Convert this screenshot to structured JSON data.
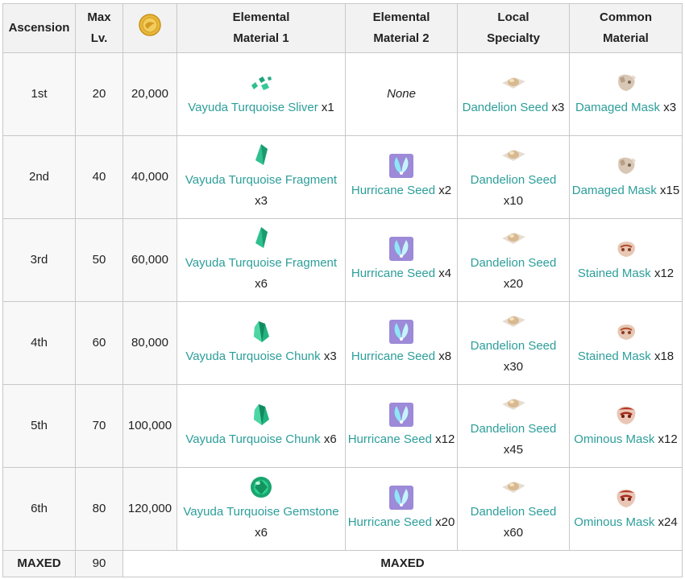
{
  "header": {
    "ascension": "Ascension",
    "max_lv": "Max Lv.",
    "mora": {
      "icon": "mora-coin-icon"
    },
    "elemental_1": "Elemental Material 1",
    "elemental_2": "Elemental Material 2",
    "local_specialty": "Local Specialty",
    "common_material": "Common Material"
  },
  "rows": [
    {
      "ascension": "1st",
      "max_lv": "20",
      "mora": "20,000",
      "elem1": {
        "icon": "turquoise-sliver-icon",
        "name": "Vayuda Turquoise Sliver",
        "qty": "x1"
      },
      "elem2": {
        "none": "None"
      },
      "local": {
        "icon": "dandelion-seed-icon",
        "name": "Dandelion Seed",
        "qty": "x3"
      },
      "common": {
        "icon": "damaged-mask-icon",
        "name": "Damaged Mask",
        "qty": "x3"
      }
    },
    {
      "ascension": "2nd",
      "max_lv": "40",
      "mora": "40,000",
      "elem1": {
        "icon": "turquoise-fragment-icon",
        "name": "Vayuda Turquoise Fragment",
        "qty": "x3"
      },
      "elem2": {
        "icon": "hurricane-seed-icon",
        "name": "Hurricane Seed",
        "qty": "x2"
      },
      "local": {
        "icon": "dandelion-seed-icon",
        "name": "Dandelion Seed",
        "qty": "x10"
      },
      "common": {
        "icon": "damaged-mask-icon",
        "name": "Damaged Mask",
        "qty": "x15"
      }
    },
    {
      "ascension": "3rd",
      "max_lv": "50",
      "mora": "60,000",
      "elem1": {
        "icon": "turquoise-fragment-icon",
        "name": "Vayuda Turquoise Fragment",
        "qty": "x6"
      },
      "elem2": {
        "icon": "hurricane-seed-icon",
        "name": "Hurricane Seed",
        "qty": "x4"
      },
      "local": {
        "icon": "dandelion-seed-icon",
        "name": "Dandelion Seed",
        "qty": "x20"
      },
      "common": {
        "icon": "stained-mask-icon",
        "name": "Stained Mask",
        "qty": "x12"
      }
    },
    {
      "ascension": "4th",
      "max_lv": "60",
      "mora": "80,000",
      "elem1": {
        "icon": "turquoise-chunk-icon",
        "name": "Vayuda Turquoise Chunk",
        "qty": "x3"
      },
      "elem2": {
        "icon": "hurricane-seed-icon",
        "name": "Hurricane Seed",
        "qty": "x8"
      },
      "local": {
        "icon": "dandelion-seed-icon",
        "name": "Dandelion Seed",
        "qty": "x30"
      },
      "common": {
        "icon": "stained-mask-icon",
        "name": "Stained Mask",
        "qty": "x18"
      }
    },
    {
      "ascension": "5th",
      "max_lv": "70",
      "mora": "100,000",
      "elem1": {
        "icon": "turquoise-chunk-icon",
        "name": "Vayuda Turquoise Chunk",
        "qty": "x6"
      },
      "elem2": {
        "icon": "hurricane-seed-icon",
        "name": "Hurricane Seed",
        "qty": "x12"
      },
      "local": {
        "icon": "dandelion-seed-icon",
        "name": "Dandelion Seed",
        "qty": "x45"
      },
      "common": {
        "icon": "ominous-mask-icon",
        "name": "Ominous Mask",
        "qty": "x12"
      }
    },
    {
      "ascension": "6th",
      "max_lv": "80",
      "mora": "120,000",
      "elem1": {
        "icon": "turquoise-gemstone-icon",
        "name": "Vayuda Turquoise Gemstone",
        "qty": "x6"
      },
      "elem2": {
        "icon": "hurricane-seed-icon",
        "name": "Hurricane Seed",
        "qty": "x20"
      },
      "local": {
        "icon": "dandelion-seed-icon",
        "name": "Dandelion Seed",
        "qty": "x60"
      },
      "common": {
        "icon": "ominous-mask-icon",
        "name": "Ominous Mask",
        "qty": "x24"
      }
    }
  ],
  "maxed_row": {
    "label": "MAXED",
    "max_lv": "90",
    "summary": "MAXED"
  },
  "colors": {
    "link": "#2c9e9a",
    "header_bg": "#f2f2f2",
    "border": "#c8c8c8"
  }
}
